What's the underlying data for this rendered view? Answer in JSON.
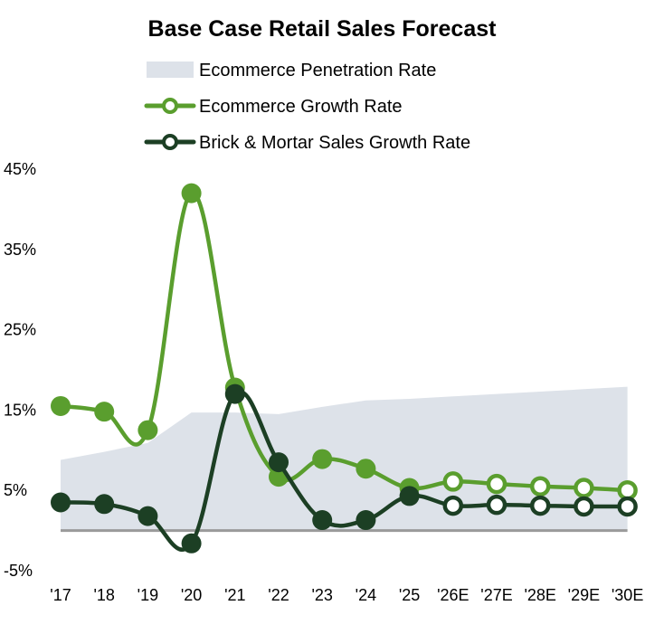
{
  "chart_data": {
    "type": "line",
    "title": "Base Case Retail Sales Forecast",
    "xlabel": "",
    "ylabel": "",
    "ylim": [
      -5,
      45
    ],
    "y_ticks": [
      45,
      35,
      25,
      15,
      5,
      -5
    ],
    "y_tick_labels": [
      "45%",
      "35%",
      "25%",
      "15%",
      "5%",
      "-5%"
    ],
    "categories": [
      "'17",
      "'18",
      "'19",
      "'20",
      "'21",
      "'22",
      "'23",
      "'24",
      "'25",
      "'26E",
      "'27E",
      "'28E",
      "'29E",
      "'30E"
    ],
    "forecast_start_index": 9,
    "series": [
      {
        "name": "Ecommerce Penetration Rate",
        "kind": "area",
        "color": "#dde2e9",
        "values": [
          8.8,
          9.8,
          10.9,
          14.7,
          14.7,
          14.5,
          15.4,
          16.2,
          16.4,
          16.7,
          17.0,
          17.3,
          17.6,
          17.9
        ]
      },
      {
        "name": "Ecommerce Growth Rate",
        "kind": "line",
        "color": "#5a9e2e",
        "values": [
          15.5,
          14.8,
          12.5,
          42.0,
          17.8,
          6.7,
          8.9,
          7.7,
          5.3,
          6.1,
          5.8,
          5.5,
          5.3,
          5.0
        ]
      },
      {
        "name": "Brick & Mortar Sales Growth Rate",
        "kind": "line",
        "color": "#1c3f24",
        "values": [
          3.5,
          3.3,
          1.8,
          -1.6,
          17.0,
          8.5,
          1.3,
          1.3,
          4.3,
          3.1,
          3.2,
          3.1,
          3.0,
          3.0
        ]
      }
    ],
    "baseline_value": 0,
    "baseline_color": "#9a9a9a",
    "legend_position": "top"
  }
}
